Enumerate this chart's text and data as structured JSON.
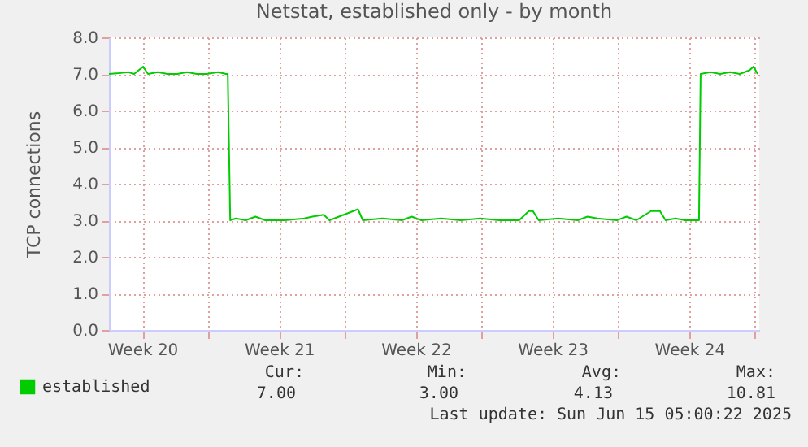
{
  "chart_data": {
    "type": "line",
    "title": "Netstat, established only - by month",
    "ylabel": "TCP connections",
    "xlim": [
      "2025-05-12T22:00",
      "2025-06-15T05:00"
    ],
    "ylim": [
      0,
      8
    ],
    "xticks": [
      {
        "value": "2025-05-14T15:00",
        "label": "Week 20"
      },
      {
        "value": "2025-05-21T15:00",
        "label": "Week 21"
      },
      {
        "value": "2025-05-28T15:00",
        "label": "Week 22"
      },
      {
        "value": "2025-06-04T15:00",
        "label": "Week 23"
      },
      {
        "value": "2025-06-11T15:00",
        "label": "Week 24"
      },
      {
        "value": "2025-05-18T00:00",
        "label": null
      },
      {
        "value": "2025-05-25T00:00",
        "label": null
      },
      {
        "value": "2025-06-01T00:00",
        "label": null
      },
      {
        "value": "2025-06-08T00:00",
        "label": null
      },
      {
        "value": "2025-06-15T00:00",
        "label": null
      }
    ],
    "yticks": [
      {
        "value": 0,
        "label": "0.0"
      },
      {
        "value": 1,
        "label": "1.0"
      },
      {
        "value": 2,
        "label": "2.0"
      },
      {
        "value": 3,
        "label": "3.0"
      },
      {
        "value": 4,
        "label": "4.0"
      },
      {
        "value": 5,
        "label": "5.0"
      },
      {
        "value": 6,
        "label": "6.0"
      },
      {
        "value": 7,
        "label": "7.0"
      },
      {
        "value": 8,
        "label": "8.0"
      }
    ],
    "grid": true,
    "legend": "bottom left",
    "marker": "none",
    "line_style": "solid",
    "series": [
      {
        "name": "established",
        "color": "#00cc00",
        "x": [
          "2025-05-12T22:00",
          "2025-05-13T10:00",
          "2025-05-13T22:00",
          "2025-05-14T05:00",
          "2025-05-14T16:00",
          "2025-05-14T22:00",
          "2025-05-15T10:00",
          "2025-05-15T22:00",
          "2025-05-16T10:00",
          "2025-05-16T22:00",
          "2025-05-17T10:00",
          "2025-05-17T22:00",
          "2025-05-18T12:00",
          "2025-05-18T22:00",
          "2025-05-19T00:00",
          "2025-05-19T03:00",
          "2025-05-19T10:00",
          "2025-05-19T22:00",
          "2025-05-20T10:00",
          "2025-05-20T22:00",
          "2025-05-21T22:00",
          "2025-05-22T22:00",
          "2025-05-23T08:00",
          "2025-05-23T22:00",
          "2025-05-24T05:00",
          "2025-05-25T16:00",
          "2025-05-25T22:00",
          "2025-05-26T22:00",
          "2025-05-27T22:00",
          "2025-05-28T10:00",
          "2025-05-28T22:00",
          "2025-05-29T22:00",
          "2025-05-30T22:00",
          "2025-05-31T22:00",
          "2025-06-01T22:00",
          "2025-06-02T22:00",
          "2025-06-03T10:00",
          "2025-06-03T15:00",
          "2025-06-03T22:00",
          "2025-06-04T22:00",
          "2025-06-05T22:00",
          "2025-06-06T10:00",
          "2025-06-06T22:00",
          "2025-06-07T22:00",
          "2025-06-08T10:00",
          "2025-06-08T22:00",
          "2025-06-09T16:00",
          "2025-06-10T03:00",
          "2025-06-10T10:00",
          "2025-06-10T22:00",
          "2025-06-11T10:00",
          "2025-06-12T03:00",
          "2025-06-12T05:00",
          "2025-06-12T17:00",
          "2025-06-13T05:00",
          "2025-06-13T17:00",
          "2025-06-14T05:00",
          "2025-06-14T17:00",
          "2025-06-14T22:00",
          "2025-06-15T03:00"
        ],
        "values": [
          7.0,
          7.02,
          7.05,
          7.0,
          7.2,
          7.0,
          7.05,
          7.0,
          7.0,
          7.05,
          7.0,
          7.0,
          7.05,
          7.0,
          7.0,
          3.0,
          3.05,
          3.0,
          3.1,
          3.0,
          3.0,
          3.05,
          3.1,
          3.15,
          3.0,
          3.3,
          3.0,
          3.05,
          3.0,
          3.1,
          3.0,
          3.05,
          3.0,
          3.05,
          3.0,
          3.0,
          3.25,
          3.25,
          3.0,
          3.05,
          3.0,
          3.1,
          3.05,
          3.0,
          3.1,
          3.0,
          3.25,
          3.25,
          3.0,
          3.05,
          3.0,
          3.0,
          7.0,
          7.05,
          7.0,
          7.05,
          7.0,
          7.1,
          7.2,
          7.0
        ]
      }
    ],
    "annotations": [
      "Cur:",
      "Min:",
      "Avg:",
      "Max:",
      "7.00",
      "3.00",
      "4.13",
      "10.81",
      "Last update: Sun Jun 15 05:00:22 2025"
    ]
  }
}
